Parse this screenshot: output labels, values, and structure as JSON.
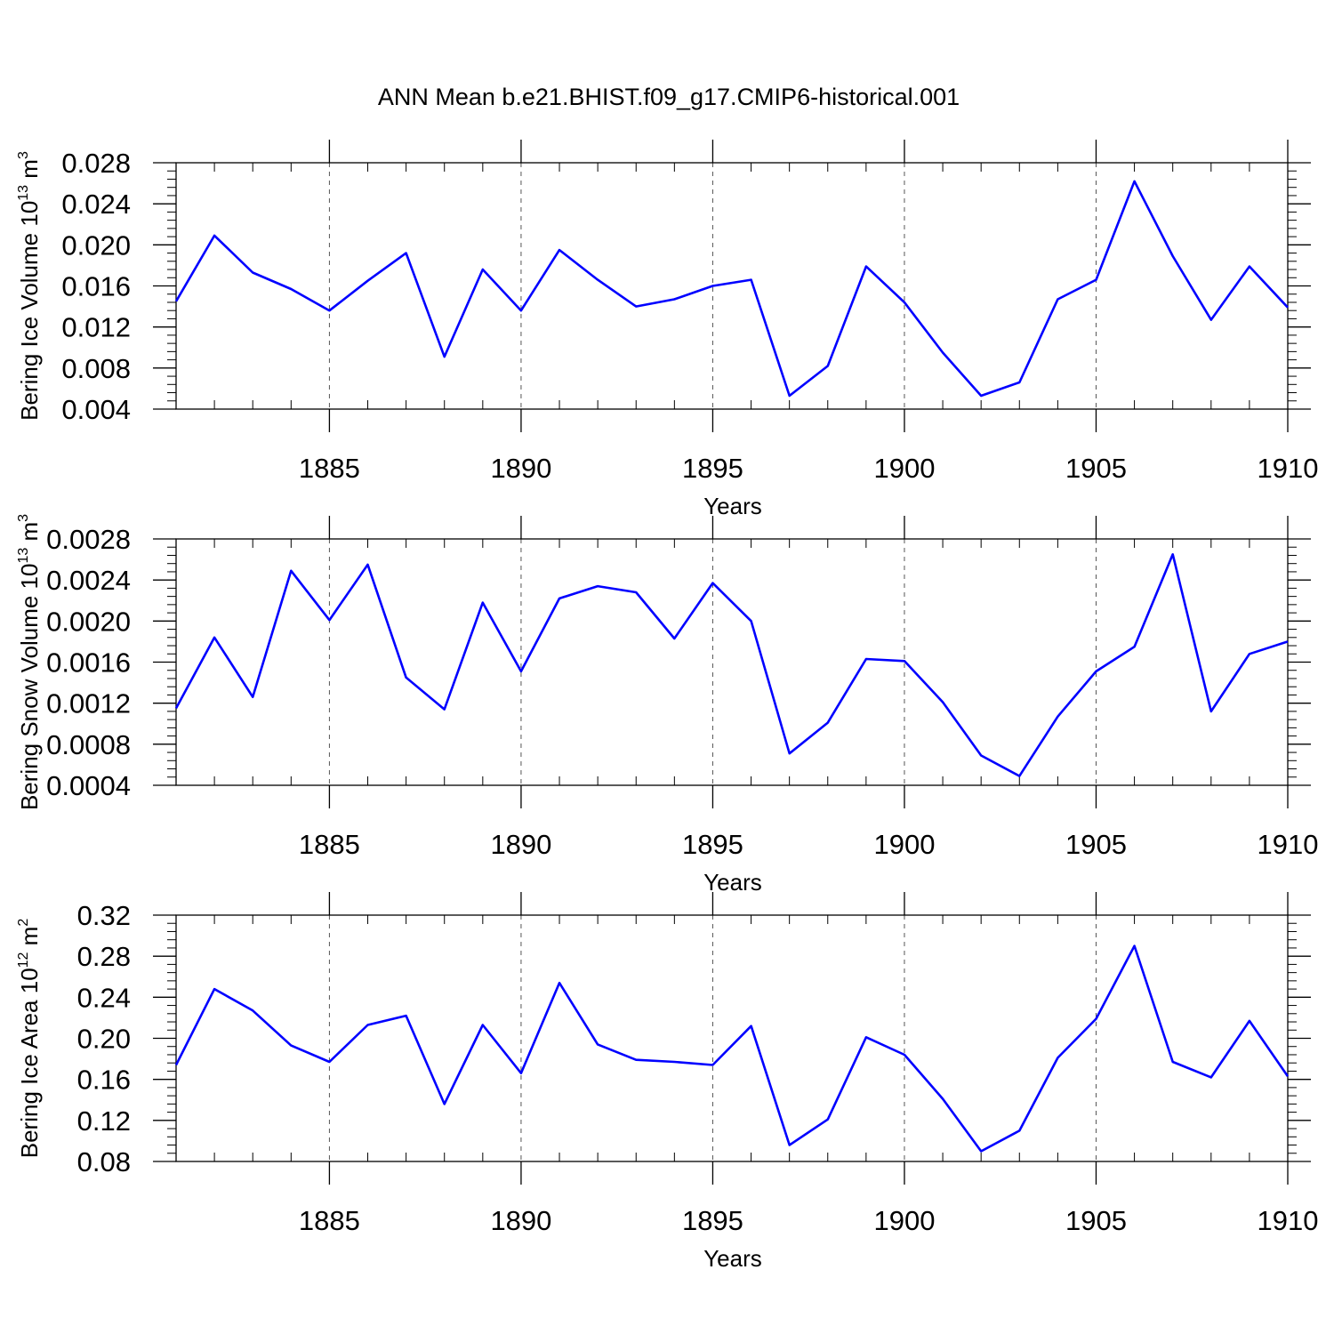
{
  "figure_title": "ANN Mean b.e21.BHIST.f09_g17.CMIP6-historical.001",
  "line_color": "#0000ff",
  "chart_data": [
    {
      "type": "line",
      "ylabel_main": "Bering Ice Volume 10",
      "ylabel_exp": "13",
      "ylabel_unit": " m",
      "ylabel_unit_exp": "3",
      "xlabel": "Years",
      "xlim": [
        1881,
        1910
      ],
      "ylim": [
        0.004,
        0.028
      ],
      "ytick_values": [
        0.004,
        0.008,
        0.012,
        0.016,
        0.02,
        0.024,
        0.028
      ],
      "ytick_labels": [
        "0.004",
        "0.008",
        "0.012",
        "0.016",
        "0.020",
        "0.024",
        "0.028"
      ],
      "xtick_values": [
        1885,
        1890,
        1895,
        1900,
        1905,
        1910
      ],
      "xtick_labels": [
        "1885",
        "1890",
        "1895",
        "1900",
        "1905",
        "1910"
      ],
      "x": [
        1881,
        1882,
        1883,
        1884,
        1885,
        1886,
        1887,
        1888,
        1889,
        1890,
        1891,
        1892,
        1893,
        1894,
        1895,
        1896,
        1897,
        1898,
        1899,
        1900,
        1901,
        1902,
        1903,
        1904,
        1905,
        1906,
        1907,
        1908,
        1909,
        1910
      ],
      "values": [
        0.0145,
        0.0209,
        0.0173,
        0.0157,
        0.0136,
        0.0165,
        0.0192,
        0.0091,
        0.0176,
        0.0136,
        0.0195,
        0.0166,
        0.014,
        0.0147,
        0.016,
        0.0166,
        0.0053,
        0.0082,
        0.0179,
        0.0144,
        0.0095,
        0.0053,
        0.0066,
        0.0147,
        0.0166,
        0.0262,
        0.0189,
        0.0127,
        0.0179,
        0.0139
      ]
    },
    {
      "type": "line",
      "ylabel_main": "Bering Snow Volume 10",
      "ylabel_exp": "13",
      "ylabel_unit": " m",
      "ylabel_unit_exp": "3",
      "xlabel": "Years",
      "xlim": [
        1881,
        1910
      ],
      "ylim": [
        0.0004,
        0.0028
      ],
      "ytick_values": [
        0.0004,
        0.0008,
        0.0012,
        0.0016,
        0.002,
        0.0024,
        0.0028
      ],
      "ytick_labels": [
        "0.0004",
        "0.0008",
        "0.0012",
        "0.0016",
        "0.0020",
        "0.0024",
        "0.0028"
      ],
      "xtick_values": [
        1885,
        1890,
        1895,
        1900,
        1905,
        1910
      ],
      "xtick_labels": [
        "1885",
        "1890",
        "1895",
        "1900",
        "1905",
        "1910"
      ],
      "x": [
        1881,
        1882,
        1883,
        1884,
        1885,
        1886,
        1887,
        1888,
        1889,
        1890,
        1891,
        1892,
        1893,
        1894,
        1895,
        1896,
        1897,
        1898,
        1899,
        1900,
        1901,
        1902,
        1903,
        1904,
        1905,
        1906,
        1907,
        1908,
        1909,
        1910
      ],
      "values": [
        0.00115,
        0.00184,
        0.00126,
        0.00249,
        0.00201,
        0.00255,
        0.00145,
        0.00114,
        0.00218,
        0.00151,
        0.00222,
        0.00234,
        0.00228,
        0.00183,
        0.00237,
        0.002,
        0.00071,
        0.00101,
        0.00163,
        0.00161,
        0.00121,
        0.00069,
        0.00049,
        0.00107,
        0.00151,
        0.00175,
        0.00265,
        0.00112,
        0.00168,
        0.0018
      ]
    },
    {
      "type": "line",
      "ylabel_main": "Bering Ice Area 10",
      "ylabel_exp": "12",
      "ylabel_unit": " m",
      "ylabel_unit_exp": "2",
      "xlabel": "Years",
      "xlim": [
        1881,
        1910
      ],
      "ylim": [
        0.08,
        0.32
      ],
      "ytick_values": [
        0.08,
        0.12,
        0.16,
        0.2,
        0.24,
        0.28,
        0.32
      ],
      "ytick_labels": [
        "0.08",
        "0.12",
        "0.16",
        "0.20",
        "0.24",
        "0.28",
        "0.32"
      ],
      "xtick_values": [
        1885,
        1890,
        1895,
        1900,
        1905,
        1910
      ],
      "xtick_labels": [
        "1885",
        "1890",
        "1895",
        "1900",
        "1905",
        "1910"
      ],
      "x": [
        1881,
        1882,
        1883,
        1884,
        1885,
        1886,
        1887,
        1888,
        1889,
        1890,
        1891,
        1892,
        1893,
        1894,
        1895,
        1896,
        1897,
        1898,
        1899,
        1900,
        1901,
        1902,
        1903,
        1904,
        1905,
        1906,
        1907,
        1908,
        1909,
        1910
      ],
      "values": [
        0.174,
        0.248,
        0.227,
        0.193,
        0.177,
        0.213,
        0.222,
        0.136,
        0.213,
        0.166,
        0.254,
        0.194,
        0.179,
        0.177,
        0.174,
        0.212,
        0.096,
        0.121,
        0.201,
        0.184,
        0.141,
        0.09,
        0.11,
        0.181,
        0.219,
        0.29,
        0.177,
        0.162,
        0.217,
        0.163
      ]
    }
  ]
}
